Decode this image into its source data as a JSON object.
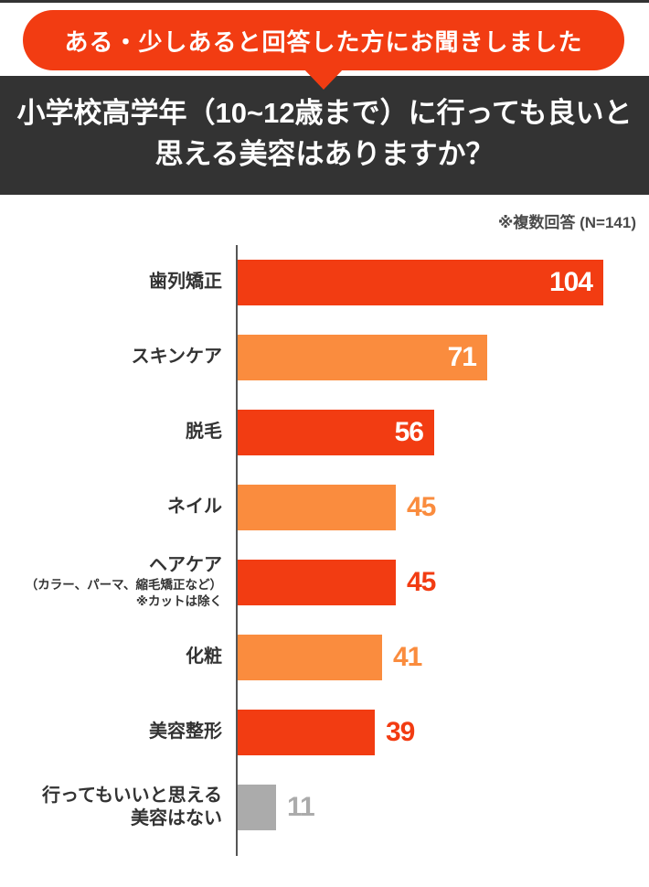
{
  "header": {
    "badge_label": "ある・少しあると回答した方にお聞きしました",
    "title_lines": {
      "0": "小学校高学年（10~12歳まで）に行っても良いと",
      "1": "思える美容はありますか？"
    }
  },
  "note": "※複数回答 (N=141)",
  "colors": {
    "primary": "#F23C12",
    "secondary": "#FA8C3E",
    "muted": "#ABABAB",
    "banner": "#333333"
  },
  "chart_data": {
    "type": "bar",
    "orientation": "horizontal",
    "title": "小学校高学年（10~12歳まで）に行っても良いと思える美容はありますか？",
    "subtitle": "ある・少しあると回答した方にお聞きしました",
    "note": "※複数回答 (N=141)",
    "sample_size": 141,
    "xlim": [
      0,
      110
    ],
    "grid": false,
    "legend": false,
    "categories": [
      "歯列矯正",
      "スキンケア",
      "脱毛",
      "ネイル",
      "ヘアケア（カラー、パーマ、縮毛矯正など）※カットは除く",
      "化粧",
      "美容整形",
      "行ってもいいと思える美容はない"
    ],
    "values": [
      104,
      71,
      56,
      45,
      45,
      41,
      39,
      11
    ],
    "bars": [
      {
        "label_lines": [
          "歯列矯正"
        ],
        "sub_lines": [],
        "value": 104,
        "palette": "primary",
        "value_position": "inside"
      },
      {
        "label_lines": [
          "スキンケア"
        ],
        "sub_lines": [],
        "value": 71,
        "palette": "secondary",
        "value_position": "inside"
      },
      {
        "label_lines": [
          "脱毛"
        ],
        "sub_lines": [],
        "value": 56,
        "palette": "primary",
        "value_position": "inside"
      },
      {
        "label_lines": [
          "ネイル"
        ],
        "sub_lines": [],
        "value": 45,
        "palette": "secondary",
        "value_position": "outside"
      },
      {
        "label_lines": [
          "ヘアケア"
        ],
        "sub_lines": [
          "（カラー、パーマ、縮毛矯正など）",
          "※カットは除く"
        ],
        "value": 45,
        "palette": "primary",
        "value_position": "outside"
      },
      {
        "label_lines": [
          "化粧"
        ],
        "sub_lines": [],
        "value": 41,
        "palette": "secondary",
        "value_position": "outside"
      },
      {
        "label_lines": [
          "美容整形"
        ],
        "sub_lines": [],
        "value": 39,
        "palette": "primary",
        "value_position": "outside"
      },
      {
        "label_lines": [
          "行ってもいいと思える",
          "美容はない"
        ],
        "sub_lines": [],
        "value": 11,
        "palette": "muted",
        "value_position": "outside"
      }
    ]
  }
}
